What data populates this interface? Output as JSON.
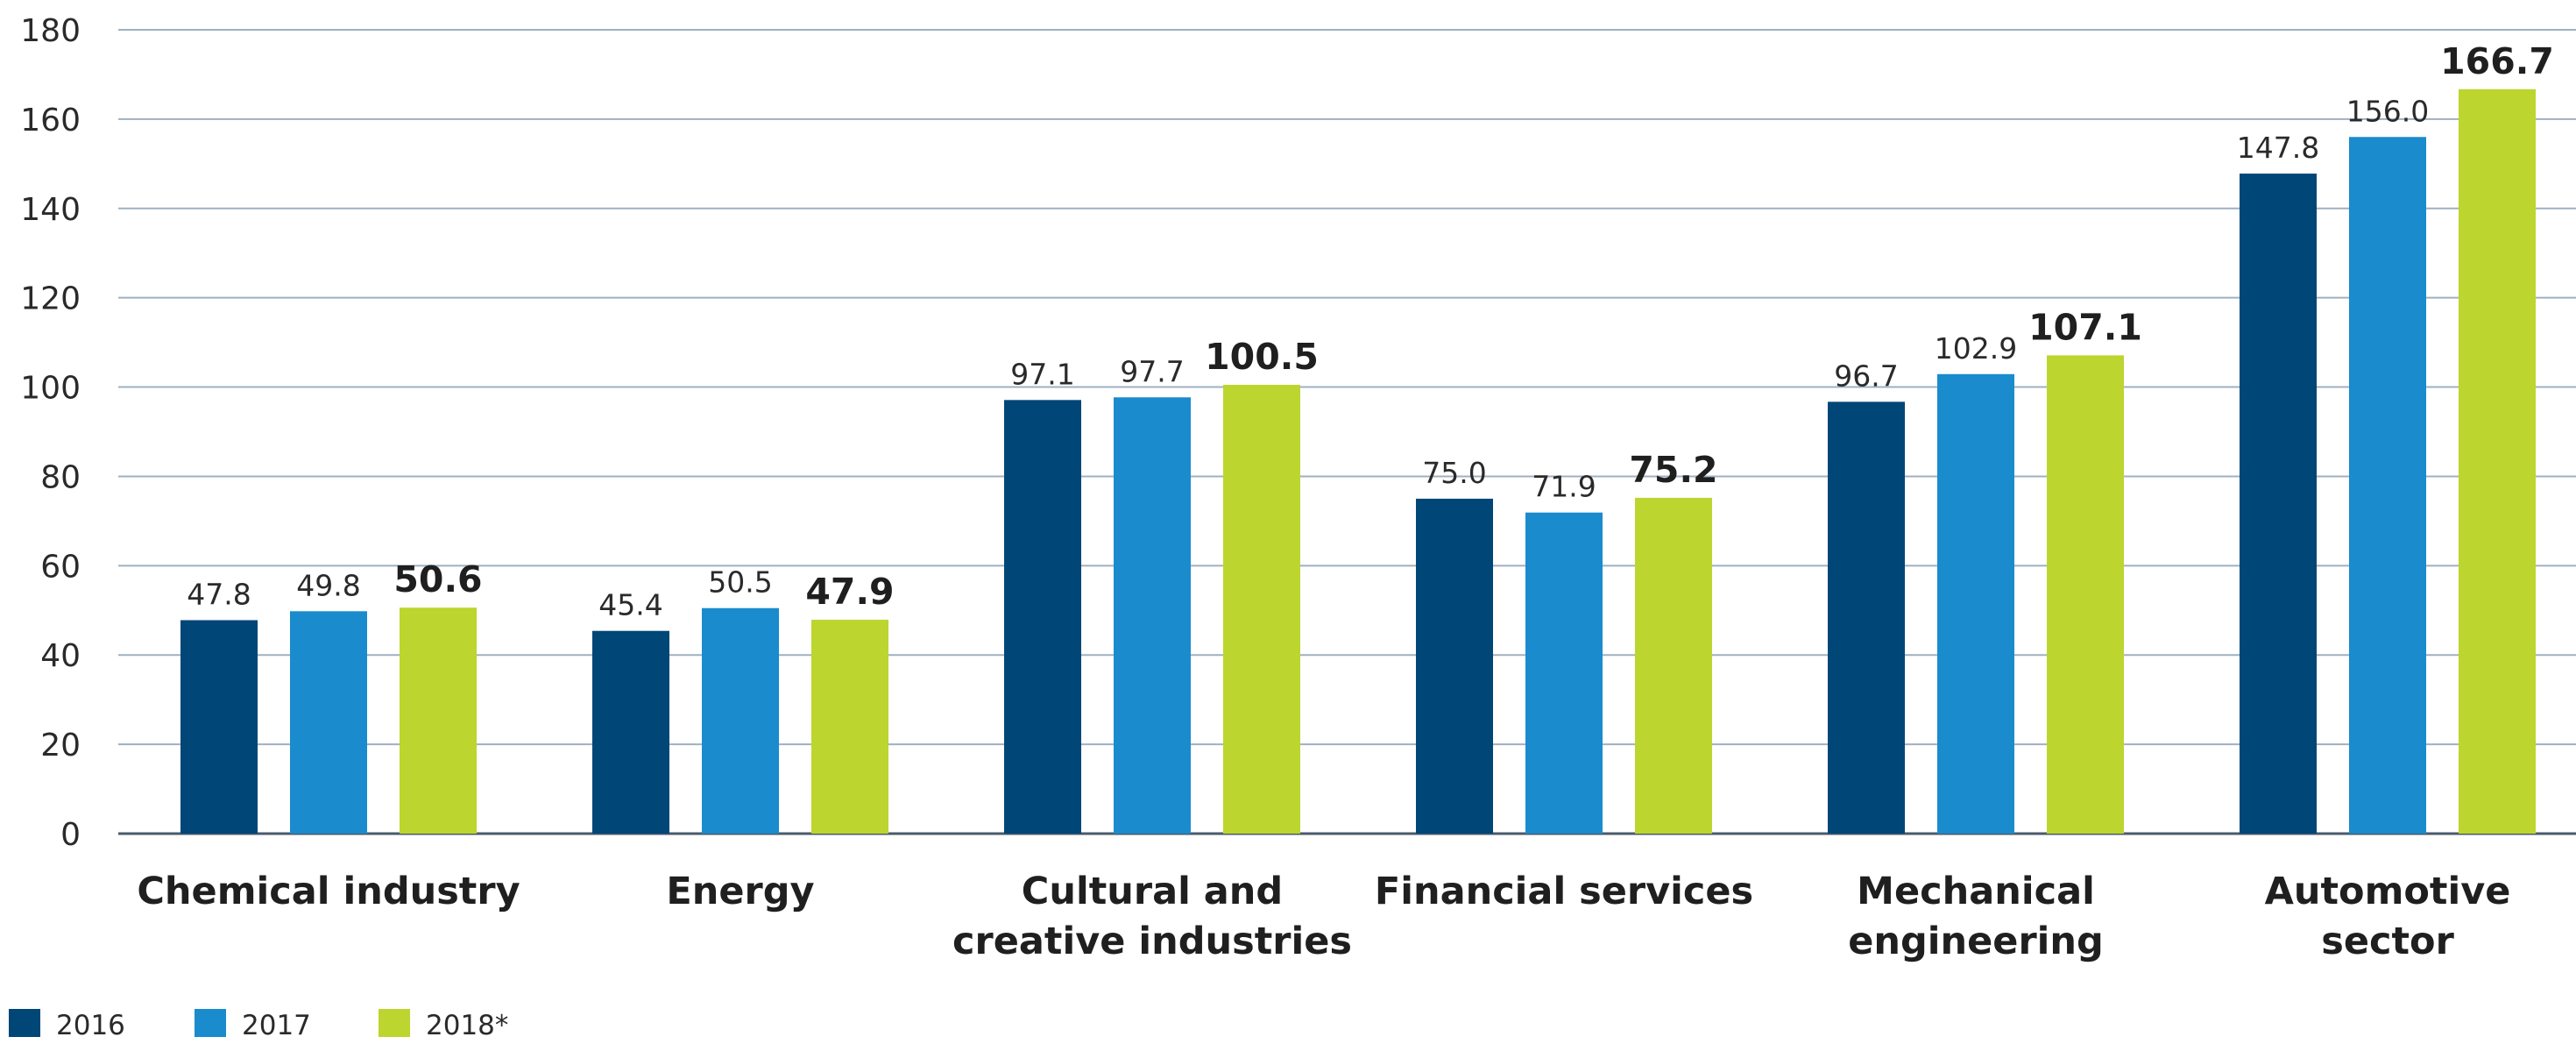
{
  "chart_data": {
    "type": "bar",
    "categories": [
      "Chemical industry",
      "Energy",
      "Cultural and creative industries",
      "Financial services",
      "Mechanical engineering",
      "Automotive sector"
    ],
    "series": [
      {
        "name": "2016",
        "color": "#004677",
        "values": [
          47.8,
          45.4,
          97.1,
          75.0,
          96.7,
          147.8
        ]
      },
      {
        "name": "2017",
        "color": "#1a8bcd",
        "values": [
          49.8,
          50.5,
          97.7,
          71.9,
          102.9,
          156.0
        ]
      },
      {
        "name": "2018*",
        "color": "#bdd52f",
        "values": [
          50.6,
          47.9,
          100.5,
          75.2,
          107.1,
          166.7
        ]
      }
    ],
    "ylim": [
      0,
      180
    ],
    "yticks": [
      0,
      20,
      40,
      60,
      80,
      100,
      120,
      140,
      160,
      180
    ],
    "grid": true,
    "legend_position": "bottom-left",
    "emphasized_series": "2018*",
    "colors": {
      "grid": "#9fb0c1",
      "axis": "#4a5a6a"
    }
  }
}
